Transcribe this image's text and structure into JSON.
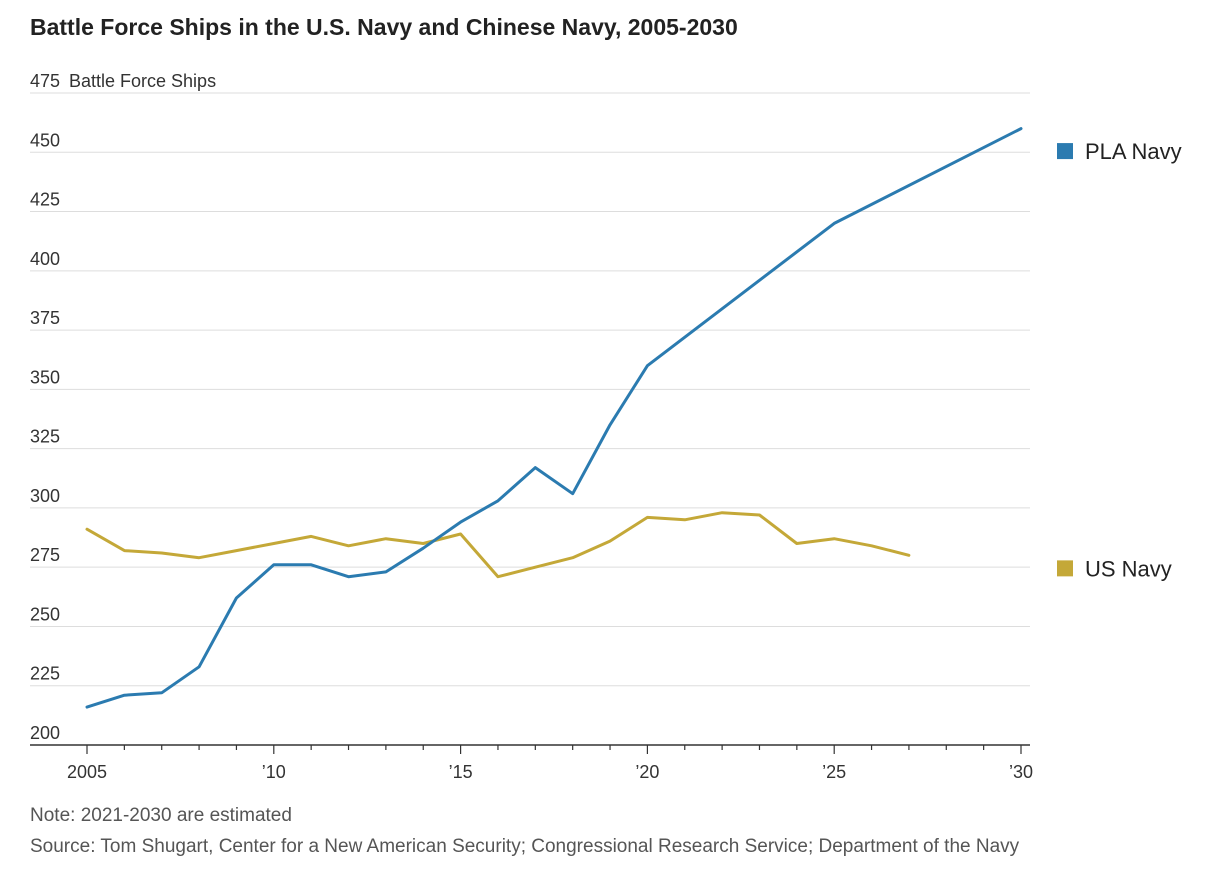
{
  "title": "Battle Force Ships in the U.S. Navy and Chinese Navy, 2005-2030",
  "note": "Note: 2021-2030 are estimated",
  "source": "Source: Tom Shugart, Center for a New American Security; Congressional Research Service; Department of the Navy",
  "colors": {
    "pla": "#2b7bb0",
    "us": "#c4a838",
    "grid": "#dddddd",
    "axis": "#333333"
  },
  "chart_data": {
    "type": "line",
    "ylabel": "Battle Force Ships",
    "ylim": [
      200,
      475
    ],
    "yticks": [
      200,
      225,
      250,
      275,
      300,
      325,
      350,
      375,
      400,
      425,
      450,
      475
    ],
    "xlim": [
      2005,
      2030
    ],
    "xticks": [
      {
        "value": 2005,
        "label": "2005"
      },
      {
        "value": 2010,
        "label": "’10"
      },
      {
        "value": 2015,
        "label": "’15"
      },
      {
        "value": 2020,
        "label": "’20"
      },
      {
        "value": 2025,
        "label": "’25"
      },
      {
        "value": 2030,
        "label": "’30"
      }
    ],
    "grid": true,
    "legend": "right",
    "series": [
      {
        "name": "PLA Navy",
        "color": "#2b7bb0",
        "x": [
          2005,
          2006,
          2007,
          2008,
          2009,
          2010,
          2011,
          2012,
          2013,
          2014,
          2015,
          2016,
          2017,
          2018,
          2019,
          2020,
          2025,
          2030
        ],
        "y": [
          216,
          221,
          222,
          233,
          262,
          276,
          276,
          271,
          273,
          283,
          294,
          303,
          317,
          306,
          335,
          360,
          420,
          460
        ]
      },
      {
        "name": "US Navy",
        "color": "#c4a838",
        "x": [
          2005,
          2006,
          2007,
          2008,
          2009,
          2010,
          2011,
          2012,
          2013,
          2014,
          2015,
          2016,
          2017,
          2018,
          2019,
          2020,
          2021,
          2022,
          2023,
          2024,
          2025,
          2026,
          2027
        ],
        "y": [
          291,
          282,
          281,
          279,
          282,
          285,
          288,
          284,
          287,
          285,
          289,
          271,
          275,
          279,
          286,
          296,
          295,
          298,
          297,
          285,
          287,
          284,
          280
        ]
      }
    ]
  }
}
